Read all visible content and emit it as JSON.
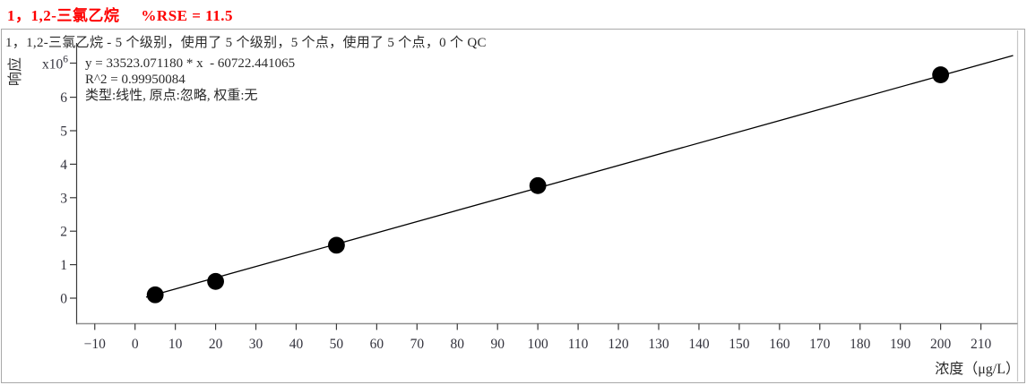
{
  "colors": {
    "title_red": "#fe0000",
    "text": "#2b2b2b",
    "tick_text": "#33333d",
    "axis_line": "#3a3a3a",
    "baseline_gray": "#8f8f8f",
    "frame_gray": "#a9a9a9",
    "point": "#000000",
    "fit_line": "#000000"
  },
  "title": {
    "compound": "1，1,2-三氯乙烷",
    "rse": "%RSE = 11.5"
  },
  "subtitle": "1，1,2-三氯乙烷 - 5 个级别，使用了 5 个级别，5 个点，使用了 5 个点，0 个 QC",
  "annotation": {
    "equation": "y = 33523.071180 * x  - 60722.441065",
    "r_squared": "R^2 = 0.99950084",
    "fit_info": "类型:线性, 原点:忽略, 权重:无"
  },
  "chart_data": {
    "type": "scatter",
    "title": "1，1,2-三氯乙烷  %RSE = 11.5",
    "xlabel": "浓度（μg/L）",
    "ylabel": "响应",
    "y_unit_label": "x10^6",
    "x_ticks": [
      -10,
      0,
      10,
      20,
      30,
      40,
      50,
      60,
      70,
      80,
      90,
      100,
      110,
      120,
      130,
      140,
      150,
      160,
      170,
      180,
      190,
      200,
      210
    ],
    "y_ticks": [
      0,
      1,
      2,
      3,
      4,
      5,
      6
    ],
    "xlim": [
      -14.5,
      219.2
    ],
    "ylim_e6": [
      -0.76,
      7.62
    ],
    "grid": false,
    "legend": "none",
    "points": [
      {
        "conc_ug_L": 5,
        "response_e6": 0.1
      },
      {
        "conc_ug_L": 20,
        "response_e6": 0.5
      },
      {
        "conc_ug_L": 50,
        "response_e6": 1.58
      },
      {
        "conc_ug_L": 100,
        "response_e6": 3.36
      },
      {
        "conc_ug_L": 200,
        "response_e6": 6.67
      }
    ],
    "fit": {
      "type_label": "线性",
      "origin_label": "忽略",
      "weight_label": "无",
      "slope": 33523.07118,
      "intercept": -60722.441065,
      "r2": 0.99950084,
      "rse_percent": 11.5
    }
  }
}
